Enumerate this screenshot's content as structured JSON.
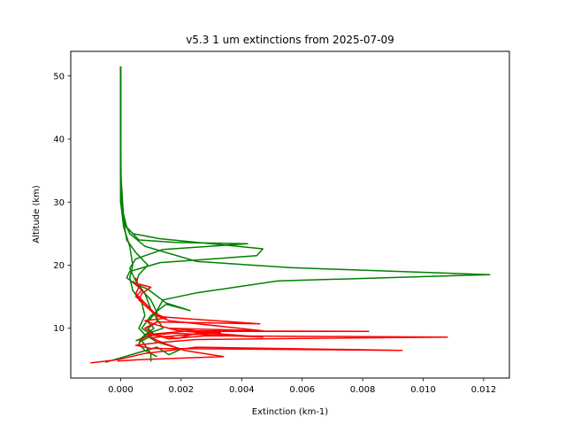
{
  "chart_data": {
    "type": "line",
    "title": "v5.3 1 um extinctions from 2025-07-09",
    "xlabel": "Extinction (km-1)",
    "ylabel": "Altitude (km)",
    "xlim": [
      -0.00165,
      0.01285
    ],
    "ylim": [
      2.1,
      53.9
    ],
    "x_ticks": [
      {
        "value": 0.0,
        "label": "0.000"
      },
      {
        "value": 0.002,
        "label": "0.002"
      },
      {
        "value": 0.004,
        "label": "0.004"
      },
      {
        "value": 0.006,
        "label": "0.006"
      },
      {
        "value": 0.008,
        "label": "0.008"
      },
      {
        "value": 0.01,
        "label": "0.010"
      },
      {
        "value": 0.012,
        "label": "0.012"
      }
    ],
    "y_ticks": [
      {
        "value": 10,
        "label": "10"
      },
      {
        "value": 20,
        "label": "20"
      },
      {
        "value": 30,
        "label": "30"
      },
      {
        "value": 40,
        "label": "40"
      },
      {
        "value": 50,
        "label": "50"
      }
    ],
    "grid": false,
    "legend": "none",
    "colors": {
      "red_series": "#ff0000",
      "green_series": "#008000"
    },
    "series": [
      {
        "color": "#008000",
        "points": [
          [
            0.0,
            51.5
          ],
          [
            0.0,
            40.0
          ],
          [
            2e-05,
            32.0
          ],
          [
            5e-05,
            28.5
          ],
          [
            0.0001,
            26.5
          ],
          [
            0.0004,
            25.0
          ],
          [
            0.0013,
            24.2
          ],
          [
            0.0047,
            22.6
          ],
          [
            0.0045,
            21.5
          ],
          [
            0.0013,
            20.4
          ],
          [
            0.0003,
            19.0
          ],
          [
            0.0002,
            18.0
          ],
          [
            0.0006,
            16.5
          ],
          [
            0.001,
            14.5
          ],
          [
            0.0012,
            12.5
          ],
          [
            0.0012,
            11.0
          ],
          [
            0.0009,
            10.0
          ],
          [
            0.0011,
            9.0
          ],
          [
            0.0007,
            8.0
          ],
          [
            0.001,
            6.0
          ],
          [
            0.001,
            4.7
          ]
        ]
      },
      {
        "color": "#008000",
        "points": [
          [
            0.0,
            51.5
          ],
          [
            0.0,
            40.0
          ],
          [
            0.0,
            30.0
          ],
          [
            0.0002,
            26.0
          ],
          [
            0.0006,
            24.0
          ],
          [
            0.0018,
            23.6
          ],
          [
            0.0042,
            23.4
          ],
          [
            0.0014,
            22.5
          ],
          [
            0.0005,
            21.0
          ],
          [
            0.0003,
            19.5
          ],
          [
            0.0005,
            17.5
          ],
          [
            0.0008,
            15.5
          ],
          [
            0.001,
            13.0
          ],
          [
            0.0012,
            11.5
          ],
          [
            0.0014,
            10.0
          ],
          [
            0.0008,
            9.0
          ],
          [
            0.0006,
            7.5
          ],
          [
            0.0008,
            6.5
          ],
          [
            0.0012,
            5.5
          ]
        ]
      },
      {
        "color": "#008000",
        "points": [
          [
            0.0,
            51.5
          ],
          [
            0.0,
            35.0
          ],
          [
            0.0001,
            27.0
          ],
          [
            0.0003,
            25.0
          ],
          [
            0.0008,
            23.0
          ],
          [
            0.0025,
            20.6
          ],
          [
            0.0056,
            19.6
          ],
          [
            0.0122,
            18.5
          ],
          [
            0.0052,
            17.5
          ],
          [
            0.0025,
            15.6
          ],
          [
            0.0014,
            14.5
          ],
          [
            0.0012,
            12.8
          ],
          [
            0.0009,
            11.0
          ],
          [
            0.0011,
            10.0
          ],
          [
            0.0007,
            8.5
          ],
          [
            0.0006,
            7.5
          ]
        ]
      },
      {
        "color": "#008000",
        "points": [
          [
            0.0,
            51.5
          ],
          [
            0.0,
            34.0
          ],
          [
            0.0001,
            27.0
          ],
          [
            0.0002,
            24.0
          ],
          [
            0.0005,
            22.0
          ],
          [
            0.0009,
            20.0
          ],
          [
            0.0006,
            18.5
          ],
          [
            0.0005,
            17.0
          ],
          [
            0.0009,
            16.2
          ],
          [
            0.0015,
            14.0
          ],
          [
            0.0023,
            12.8
          ],
          [
            0.0015,
            13.8
          ],
          [
            0.001,
            12.0
          ],
          [
            0.0007,
            10.0
          ],
          [
            0.001,
            9.0
          ],
          [
            0.0005,
            8.0
          ]
        ]
      },
      {
        "color": "#008000",
        "points": [
          [
            0.0,
            51.5
          ],
          [
            0.0,
            30.0
          ],
          [
            0.0001,
            26.0
          ],
          [
            0.0003,
            23.0
          ],
          [
            0.0004,
            20.0
          ],
          [
            0.0003,
            18.0
          ],
          [
            0.0004,
            16.0
          ],
          [
            0.0007,
            14.0
          ],
          [
            0.0008,
            12.0
          ],
          [
            0.0006,
            10.0
          ],
          [
            0.0008,
            9.0
          ],
          [
            0.0012,
            7.8
          ],
          [
            0.002,
            6.7
          ],
          [
            0.0016,
            5.8
          ],
          [
            0.0012,
            7.0
          ],
          [
            -0.0005,
            4.6
          ]
        ]
      },
      {
        "color": "#ff0000",
        "points": [
          [
            0.0005,
            18.0
          ],
          [
            0.0006,
            16.5
          ],
          [
            0.0005,
            15.5
          ],
          [
            0.0007,
            14.5
          ],
          [
            0.0009,
            13.5
          ],
          [
            0.0011,
            12.5
          ],
          [
            0.0014,
            11.8
          ],
          [
            0.0022,
            11.5
          ],
          [
            0.0046,
            10.7
          ],
          [
            0.0012,
            11.0
          ],
          [
            0.0008,
            10.0
          ],
          [
            0.0011,
            9.0
          ],
          [
            0.0016,
            8.3
          ],
          [
            0.0028,
            8.8
          ],
          [
            0.0108,
            8.6
          ],
          [
            0.0025,
            8.2
          ],
          [
            0.0012,
            7.7
          ],
          [
            0.0005,
            7.3
          ],
          [
            0.001,
            6.8
          ],
          [
            0.0093,
            6.5
          ],
          [
            0.0025,
            7.0
          ],
          [
            0.0008,
            6.0
          ],
          [
            -0.0001,
            5.0
          ],
          [
            -0.001,
            4.5
          ]
        ]
      },
      {
        "color": "#ff0000",
        "points": [
          [
            0.0004,
            17.5
          ],
          [
            0.0007,
            16.0
          ],
          [
            0.0005,
            15.0
          ],
          [
            0.0008,
            14.0
          ],
          [
            0.001,
            13.0
          ],
          [
            0.0012,
            12.0
          ],
          [
            0.0016,
            11.2
          ],
          [
            0.0047,
            9.6
          ],
          [
            0.0016,
            10.0
          ],
          [
            0.0025,
            9.6
          ],
          [
            0.0082,
            9.5
          ],
          [
            0.0021,
            9.5
          ],
          [
            0.0009,
            9.0
          ],
          [
            0.0019,
            8.4
          ],
          [
            0.0026,
            9.3
          ],
          [
            0.0033,
            9.3
          ],
          [
            0.0024,
            9.0
          ],
          [
            0.001,
            8.5
          ],
          [
            0.0015,
            7.5
          ],
          [
            0.0021,
            6.5
          ],
          [
            0.0034,
            5.5
          ],
          [
            0.0006,
            5.0
          ],
          [
            -0.0001,
            4.8
          ]
        ]
      },
      {
        "color": "#ff0000",
        "points": [
          [
            0.0006,
            17.0
          ],
          [
            0.001,
            16.5
          ],
          [
            0.0007,
            15.5
          ],
          [
            0.0006,
            14.5
          ],
          [
            0.0009,
            13.2
          ],
          [
            0.0011,
            12.3
          ],
          [
            0.0015,
            11.6
          ],
          [
            0.0008,
            11.2
          ],
          [
            0.0012,
            10.5
          ],
          [
            0.0019,
            9.6
          ],
          [
            0.0047,
            8.6
          ],
          [
            0.0017,
            9.2
          ],
          [
            0.0009,
            8.8
          ],
          [
            0.0006,
            8.0
          ]
        ]
      }
    ]
  }
}
